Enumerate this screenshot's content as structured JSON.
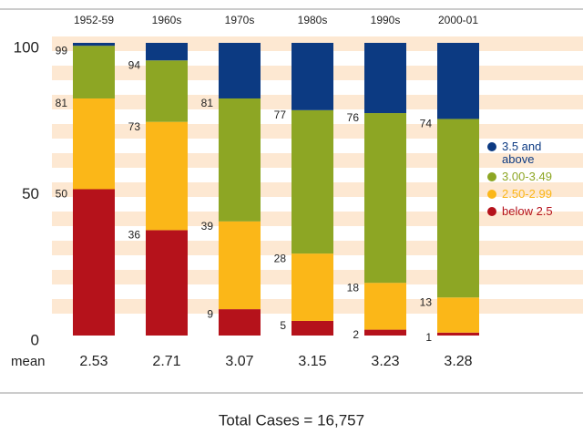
{
  "chart_data": {
    "type": "stacked-bar",
    "categories": [
      "1952-59",
      "1960s",
      "1970s",
      "1980s",
      "1990s",
      "2000-01"
    ],
    "series": [
      {
        "name": "below 2.5",
        "color": "#b5121b",
        "values": [
          50,
          36,
          9,
          5,
          2,
          1
        ]
      },
      {
        "name": "2.50-2.99",
        "color": "#fbb718",
        "values": [
          31,
          37,
          30,
          23,
          16,
          12
        ]
      },
      {
        "name": "3.00-3.49",
        "color": "#8da624",
        "values": [
          18,
          21,
          42,
          49,
          58,
          61
        ]
      },
      {
        "name": "3.5 and above",
        "color": "#0c3a82",
        "values": [
          1,
          6,
          19,
          23,
          24,
          26
        ]
      }
    ],
    "level_labels": [
      [
        "50",
        "81",
        "99"
      ],
      [
        "36",
        "73",
        "94"
      ],
      [
        "9",
        "39",
        "81"
      ],
      [
        "5",
        "28",
        "77"
      ],
      [
        "2",
        "18",
        "76"
      ],
      [
        "1",
        "13",
        "74"
      ]
    ],
    "mean_label": "mean",
    "means": [
      2.53,
      2.71,
      3.07,
      3.15,
      3.23,
      3.28
    ],
    "ylim": [
      0,
      100
    ],
    "yticks": [
      0,
      50,
      100
    ],
    "legend": "right",
    "footer": "Total Cases = 16,757"
  }
}
